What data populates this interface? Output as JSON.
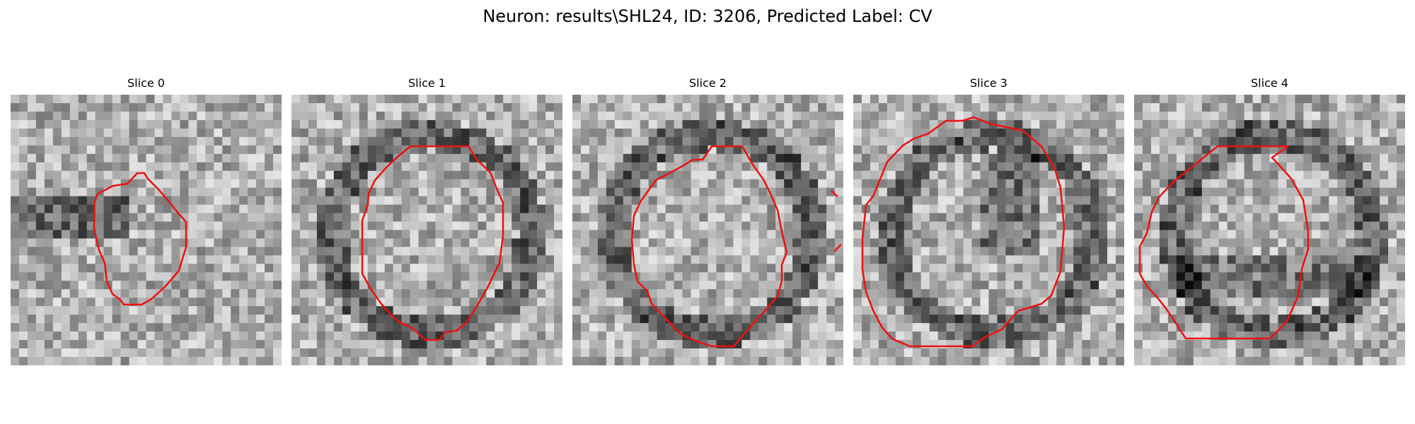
{
  "figure": {
    "title": "Neuron: results\\SHL24, ID: 3206, Predicted Label: CV",
    "contour_color": "#ee1111"
  },
  "panels": [
    {
      "title": "Slice 0",
      "seed": 11,
      "dark_ring": false
    },
    {
      "title": "Slice 1",
      "seed": 23,
      "dark_ring": true
    },
    {
      "title": "Slice 2",
      "seed": 37,
      "dark_ring": true
    },
    {
      "title": "Slice 3",
      "seed": 41,
      "dark_ring": true
    },
    {
      "title": "Slice 4",
      "seed": 53,
      "dark_ring": true
    }
  ]
}
